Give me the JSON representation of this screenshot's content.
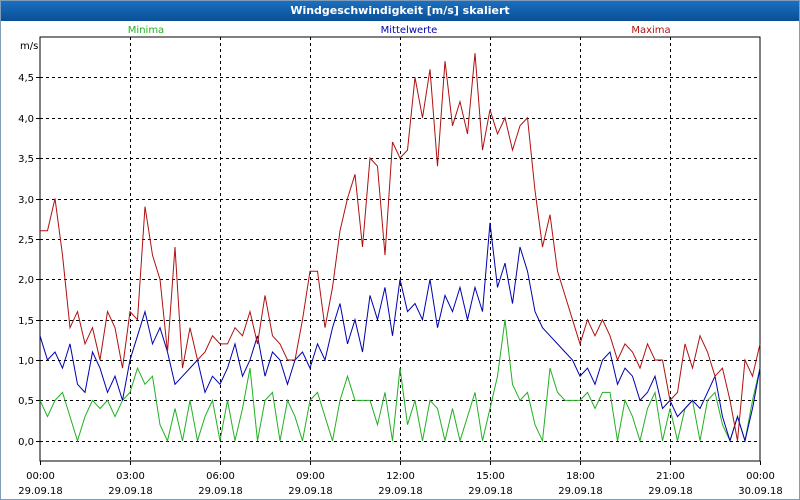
{
  "chart_data": {
    "type": "line",
    "title": "Windgeschwindigkeit [m/s] skaliert",
    "ylabel": "m/s",
    "ylim": [
      -0.25,
      5.0
    ],
    "y_ticks": [
      0.0,
      0.5,
      1.0,
      1.5,
      2.0,
      2.5,
      3.0,
      3.5,
      4.0,
      4.5
    ],
    "y_tick_labels": [
      "0,0",
      "0,5",
      "1,0",
      "1,5",
      "2,0",
      "2,5",
      "3,0",
      "3,5",
      "4,0",
      "4,5"
    ],
    "xlim_hours": [
      0,
      24
    ],
    "x_ticks": [
      {
        "hour": 0,
        "time": "00:00",
        "date": "29.09.18"
      },
      {
        "hour": 3,
        "time": "03:00",
        "date": "29.09.18"
      },
      {
        "hour": 6,
        "time": "06:00",
        "date": "29.09.18"
      },
      {
        "hour": 9,
        "time": "09:00",
        "date": "29.09.18"
      },
      {
        "hour": 12,
        "time": "12:00",
        "date": "29.09.18"
      },
      {
        "hour": 15,
        "time": "15:00",
        "date": "29.09.18"
      },
      {
        "hour": 18,
        "time": "18:00",
        "date": "29.09.18"
      },
      {
        "hour": 21,
        "time": "21:00",
        "date": "29.09.18"
      },
      {
        "hour": 24,
        "time": "00:00",
        "date": "30.09.18"
      }
    ],
    "grid": true,
    "legend_position": "top",
    "series": [
      {
        "name": "Minima",
        "color": "#22b022",
        "x": [
          0,
          0.25,
          0.5,
          0.75,
          1,
          1.25,
          1.5,
          1.75,
          2,
          2.25,
          2.5,
          2.75,
          3,
          3.25,
          3.5,
          3.75,
          4,
          4.25,
          4.5,
          4.75,
          5,
          5.25,
          5.5,
          5.75,
          6,
          6.25,
          6.5,
          6.75,
          7,
          7.25,
          7.5,
          7.75,
          8,
          8.25,
          8.5,
          8.75,
          9,
          9.25,
          9.5,
          9.75,
          10,
          10.25,
          10.5,
          10.75,
          11,
          11.25,
          11.5,
          11.75,
          12,
          12.25,
          12.5,
          12.75,
          13,
          13.25,
          13.5,
          13.75,
          14,
          14.25,
          14.5,
          14.75,
          15,
          15.25,
          15.5,
          15.75,
          16,
          16.25,
          16.5,
          16.75,
          17,
          17.25,
          17.5,
          17.75,
          18,
          18.25,
          18.5,
          18.75,
          19,
          19.25,
          19.5,
          19.75,
          20,
          20.25,
          20.5,
          20.75,
          21,
          21.25,
          21.5,
          21.75,
          22,
          22.25,
          22.5,
          22.75,
          23,
          23.25,
          23.5,
          23.75,
          24
        ],
        "values": [
          0.5,
          0.3,
          0.5,
          0.6,
          0.3,
          0.0,
          0.3,
          0.5,
          0.4,
          0.5,
          0.3,
          0.5,
          0.6,
          0.9,
          0.7,
          0.8,
          0.2,
          0.0,
          0.4,
          0.0,
          0.5,
          0.0,
          0.3,
          0.5,
          0.0,
          0.5,
          0.0,
          0.4,
          0.9,
          0.0,
          0.5,
          0.6,
          0.0,
          0.5,
          0.3,
          0.0,
          0.5,
          0.6,
          0.3,
          0.0,
          0.5,
          0.8,
          0.5,
          0.5,
          0.5,
          0.2,
          0.6,
          0.0,
          0.9,
          0.2,
          0.5,
          0.0,
          0.5,
          0.4,
          0.0,
          0.4,
          0.0,
          0.3,
          0.6,
          0.0,
          0.4,
          0.8,
          1.5,
          0.7,
          0.5,
          0.6,
          0.2,
          0.0,
          0.9,
          0.6,
          0.5,
          0.5,
          0.5,
          0.6,
          0.4,
          0.6,
          0.6,
          0.0,
          0.5,
          0.3,
          0.0,
          0.4,
          0.6,
          0.0,
          0.4,
          0.0,
          0.4,
          0.5,
          0.0,
          0.5,
          0.6,
          0.2,
          0.0,
          0.3,
          0.0,
          0.5,
          0.9
        ],
        "data_labels": []
      },
      {
        "name": "Mittelwerte",
        "color": "#0000b0",
        "x": [
          0,
          0.25,
          0.5,
          0.75,
          1,
          1.25,
          1.5,
          1.75,
          2,
          2.25,
          2.5,
          2.75,
          3,
          3.25,
          3.5,
          3.75,
          4,
          4.25,
          4.5,
          4.75,
          5,
          5.25,
          5.5,
          5.75,
          6,
          6.25,
          6.5,
          6.75,
          7,
          7.25,
          7.5,
          7.75,
          8,
          8.25,
          8.5,
          8.75,
          9,
          9.25,
          9.5,
          9.75,
          10,
          10.25,
          10.5,
          10.75,
          11,
          11.25,
          11.5,
          11.75,
          12,
          12.25,
          12.5,
          12.75,
          13,
          13.25,
          13.5,
          13.75,
          14,
          14.25,
          14.5,
          14.75,
          15,
          15.25,
          15.5,
          15.75,
          16,
          16.25,
          16.5,
          16.75,
          17,
          17.25,
          17.5,
          17.75,
          18,
          18.25,
          18.5,
          18.75,
          19,
          19.25,
          19.5,
          19.75,
          20,
          20.25,
          20.5,
          20.75,
          21,
          21.25,
          21.5,
          21.75,
          22,
          22.25,
          22.5,
          22.75,
          23,
          23.25,
          23.5,
          23.75,
          24
        ],
        "values": [
          1.3,
          1.0,
          1.1,
          0.9,
          1.2,
          0.7,
          0.6,
          1.1,
          0.9,
          0.6,
          0.8,
          0.5,
          1.0,
          1.3,
          1.6,
          1.2,
          1.4,
          1.1,
          0.7,
          0.8,
          0.9,
          1.0,
          0.6,
          0.8,
          0.7,
          0.9,
          1.2,
          0.8,
          1.0,
          1.3,
          0.8,
          1.1,
          1.0,
          0.7,
          1.0,
          1.1,
          0.9,
          1.2,
          1.0,
          1.4,
          1.7,
          1.2,
          1.5,
          1.1,
          1.8,
          1.5,
          1.9,
          1.3,
          2.0,
          1.6,
          1.7,
          1.5,
          2.0,
          1.4,
          1.8,
          1.6,
          1.9,
          1.5,
          1.9,
          1.6,
          2.7,
          1.9,
          2.2,
          1.7,
          2.4,
          2.1,
          1.6,
          1.4,
          1.3,
          1.2,
          1.1,
          1.0,
          0.8,
          0.9,
          0.7,
          1.0,
          1.1,
          0.7,
          0.9,
          0.8,
          0.5,
          0.6,
          0.8,
          0.4,
          0.5,
          0.3,
          0.4,
          0.5,
          0.4,
          0.6,
          0.8,
          0.3,
          0.0,
          0.3,
          0.0,
          0.4,
          0.9
        ],
        "data_labels": []
      },
      {
        "name": "Maxima",
        "color": "#b01010",
        "x": [
          0,
          0.25,
          0.5,
          0.75,
          1,
          1.25,
          1.5,
          1.75,
          2,
          2.25,
          2.5,
          2.75,
          3,
          3.25,
          3.5,
          3.75,
          4,
          4.25,
          4.5,
          4.75,
          5,
          5.25,
          5.5,
          5.75,
          6,
          6.25,
          6.5,
          6.75,
          7,
          7.25,
          7.5,
          7.75,
          8,
          8.25,
          8.5,
          8.75,
          9,
          9.25,
          9.5,
          9.75,
          10,
          10.25,
          10.5,
          10.75,
          11,
          11.25,
          11.5,
          11.75,
          12,
          12.25,
          12.5,
          12.75,
          13,
          13.25,
          13.5,
          13.75,
          14,
          14.25,
          14.5,
          14.75,
          15,
          15.25,
          15.5,
          15.75,
          16,
          16.25,
          16.5,
          16.75,
          17,
          17.25,
          17.5,
          17.75,
          18,
          18.25,
          18.5,
          18.75,
          19,
          19.25,
          19.5,
          19.75,
          20,
          20.25,
          20.5,
          20.75,
          21,
          21.25,
          21.5,
          21.75,
          22,
          22.25,
          22.5,
          22.75,
          23,
          23.25,
          23.5,
          23.75,
          24
        ],
        "values": [
          2.6,
          2.6,
          3.0,
          2.3,
          1.4,
          1.6,
          1.2,
          1.4,
          1.0,
          1.6,
          1.4,
          0.9,
          1.6,
          1.5,
          2.9,
          2.3,
          2.0,
          1.1,
          2.4,
          0.9,
          1.4,
          1.0,
          1.1,
          1.3,
          1.2,
          1.2,
          1.4,
          1.3,
          1.6,
          1.2,
          1.8,
          1.3,
          1.2,
          1.0,
          1.0,
          1.5,
          2.1,
          2.1,
          1.4,
          1.9,
          2.6,
          3.0,
          3.3,
          2.4,
          3.5,
          3.4,
          2.3,
          3.7,
          3.5,
          3.6,
          4.5,
          4.0,
          4.6,
          3.4,
          4.7,
          3.9,
          4.2,
          3.8,
          4.8,
          3.6,
          4.1,
          3.8,
          4.0,
          3.6,
          3.9,
          4.0,
          3.1,
          2.4,
          2.8,
          2.1,
          1.8,
          1.5,
          1.2,
          1.5,
          1.3,
          1.5,
          1.3,
          1.0,
          1.2,
          1.1,
          0.9,
          1.2,
          1.0,
          1.0,
          0.5,
          0.6,
          1.2,
          0.9,
          1.3,
          1.1,
          0.8,
          0.9,
          0.5,
          0.0,
          1.0,
          0.8,
          1.2
        ],
        "data_labels": []
      }
    ]
  }
}
